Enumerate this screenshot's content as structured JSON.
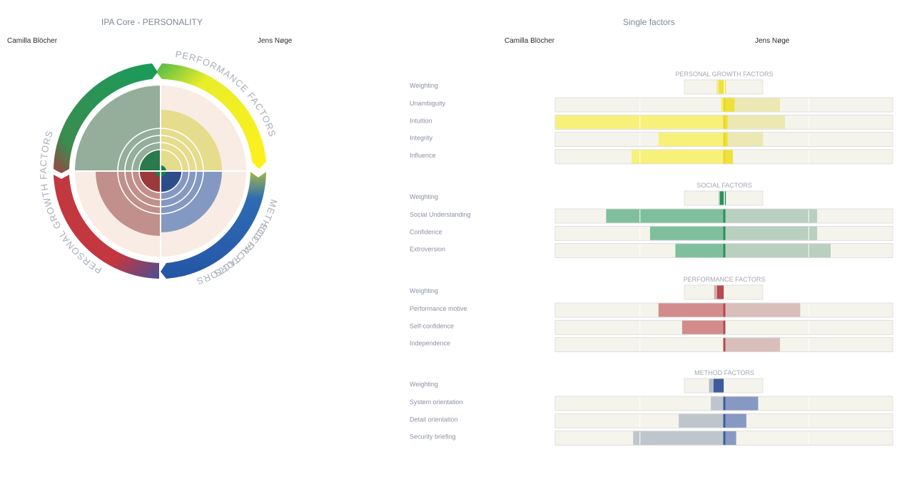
{
  "left_panel": {
    "title": "IPA Core - PERSONALITY",
    "person_a": "Camilla Blöcher",
    "person_b": "Jens Nøge"
  },
  "right_panel": {
    "title": "Single factors",
    "person_a": "Camilla Blöcher",
    "person_b": "Jens Nøge"
  },
  "colors": {
    "growth": "#f2e21c",
    "social": "#1a9a58",
    "performance": "#c7343e",
    "method": "#2a5ea9",
    "track_bg": "#f5f4ec",
    "quadrant_bg": "#f8ece4"
  },
  "chart_data": [
    {
      "type": "radial",
      "title": "IPA Core - PERSONALITY",
      "segments": [
        {
          "name": "PERSONAL GROWTH FACTORS",
          "person_a_value": 0.66,
          "person_b_value": 0.66
        },
        {
          "name": "METHOD FACTORS",
          "person_a_value": 0.1,
          "person_b_value": 0.66
        },
        {
          "name": "PERFORMANCE FACTORS",
          "person_a_value": 0.71,
          "person_b_value": 0.1
        },
        {
          "name": "SOCIAL FACTORS",
          "person_a_value": 1.0,
          "person_b_value": 0.1
        }
      ]
    },
    {
      "type": "bar",
      "title": "Single factors",
      "xlim": [
        -1,
        1
      ],
      "groups": [
        {
          "name": "PERSONAL GROWTH FACTORS",
          "color_key": "growth",
          "weighting": {
            "label": "Weighting",
            "a": 0.2,
            "b": 0.04
          },
          "rows": [
            {
              "label": "Unambiguity",
              "a": -0.02,
              "b": 0.06,
              "b_light": 0.33
            },
            {
              "label": "Intuition",
              "a": -1.0,
              "b": 0.02,
              "b_light": 0.36
            },
            {
              "label": "Integrity",
              "a": -0.39,
              "b": 0.02,
              "b_light": 0.23
            },
            {
              "label": "Influence",
              "a": -0.55,
              "b": 0.05,
              "b_light": 0.05
            }
          ]
        },
        {
          "name": "SOCIAL FACTORS",
          "color_key": "social",
          "weighting": {
            "label": "Weighting",
            "a": 0.14,
            "b": 0.04
          },
          "rows": [
            {
              "label": "Social Understanding",
              "a": -0.7,
              "b": 0.0,
              "b_light": 0.55
            },
            {
              "label": "Confidence",
              "a": -0.44,
              "b": 0.0,
              "b_light": 0.55
            },
            {
              "label": "Extroversion",
              "a": -0.29,
              "b": 0.0,
              "b_light": 0.63
            }
          ]
        },
        {
          "name": "PERFORMANCE FACTORS",
          "color_key": "performance",
          "weighting": {
            "label": "Weighting",
            "a": 0.26,
            "b": 0.0
          },
          "rows": [
            {
              "label": "Performance motive",
              "a": -0.39,
              "b": 0.0,
              "b_light": 0.45
            },
            {
              "label": "Self-confidence",
              "a": -0.25,
              "b": 0.0,
              "b_light": 0.0
            },
            {
              "label": "Independence",
              "a": 0.0,
              "b": 0.0,
              "b_light": 0.33
            }
          ]
        },
        {
          "name": "METHOD FACTORS",
          "color_key": "method",
          "weighting": {
            "label": "Weighting",
            "a": 0.39,
            "b": 0.0
          },
          "rows": [
            {
              "label": "System orientation",
              "a": -0.08,
              "b": 0.2,
              "b_light": 0.2
            },
            {
              "label": "Detail orientation",
              "a": -0.27,
              "b": 0.13,
              "b_light": 0.13
            },
            {
              "label": "Security briefing",
              "a": -0.54,
              "b": 0.07,
              "b_light": 0.07
            }
          ]
        }
      ]
    }
  ]
}
